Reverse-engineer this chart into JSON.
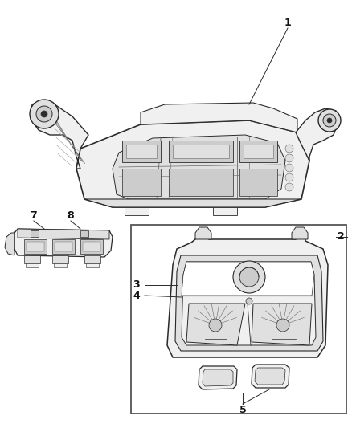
{
  "background_color": "#ffffff",
  "line_color": "#2a2a2a",
  "mid_line_color": "#666666",
  "light_line_color": "#aaaaaa",
  "fill_white": "#ffffff",
  "fill_light": "#f0f0f0",
  "fill_mid": "#e0e0e0",
  "fill_dark": "#cccccc",
  "fig_w": 4.38,
  "fig_h": 5.33,
  "dpi": 100
}
